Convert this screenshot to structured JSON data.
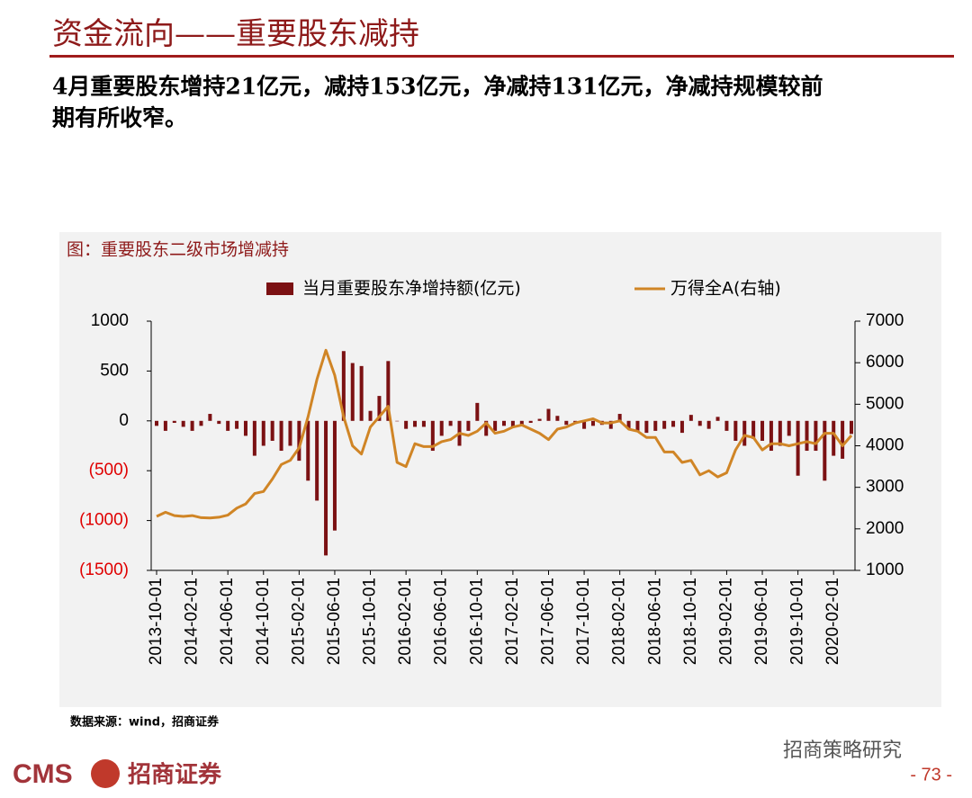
{
  "header": {
    "title": "资金流向——重要股东减持"
  },
  "summary": [
    "4月重要股东增持21亿元，减持153亿元，净减持131亿元，净减持规模较前",
    "期有所收窄。"
  ],
  "chart_data": {
    "type": "bar",
    "title": "图：重要股东二级市场增减持",
    "categories": [
      "2013-10-01",
      null,
      null,
      null,
      "2014-02-01",
      null,
      null,
      null,
      "2014-06-01",
      null,
      null,
      null,
      "2014-10-01",
      null,
      null,
      null,
      "2015-02-01",
      null,
      null,
      null,
      "2015-06-01",
      null,
      null,
      null,
      "2015-10-01",
      null,
      null,
      null,
      "2016-02-01",
      null,
      null,
      null,
      "2016-06-01",
      null,
      null,
      null,
      "2016-10-01",
      null,
      null,
      null,
      "2017-02-01",
      null,
      null,
      null,
      "2017-06-01",
      null,
      null,
      null,
      "2017-10-01",
      null,
      null,
      null,
      "2018-02-01",
      null,
      null,
      null,
      "2018-06-01",
      null,
      null,
      null,
      "2018-10-01",
      null,
      null,
      null,
      "2019-02-01",
      null,
      null,
      null,
      "2019-06-01",
      null,
      null,
      null,
      "2019-10-01",
      null,
      null,
      null,
      "2020-02-01",
      null,
      null
    ],
    "series": [
      {
        "name": "当月重要股东净增持额(亿元)",
        "type": "bar",
        "color": "#7b1113",
        "values": [
          -50,
          -100,
          -20,
          -60,
          -100,
          -50,
          70,
          -30,
          -100,
          -80,
          -150,
          -350,
          -250,
          -200,
          -300,
          -250,
          -400,
          -600,
          -800,
          -1350,
          -1100,
          700,
          580,
          550,
          100,
          250,
          600,
          0,
          -80,
          -60,
          -60,
          -300,
          -150,
          -50,
          -250,
          -100,
          180,
          -150,
          -100,
          -50,
          -60,
          -40,
          -20,
          20,
          120,
          50,
          -40,
          -30,
          -80,
          -50,
          -40,
          -80,
          70,
          -80,
          -100,
          -120,
          -100,
          -80,
          -60,
          -120,
          60,
          -50,
          -80,
          40,
          -100,
          -200,
          -250,
          -180,
          -200,
          -300,
          -250,
          -150,
          -550,
          -300,
          -300,
          -600,
          -350,
          -380,
          -131
        ]
      },
      {
        "name": "万得全A(右轴)",
        "type": "line",
        "axis": "y2",
        "color": "#d08526",
        "values": [
          2300,
          2400,
          2320,
          2300,
          2320,
          2270,
          2260,
          2280,
          2330,
          2500,
          2600,
          2850,
          2900,
          3200,
          3550,
          3650,
          3950,
          4700,
          5600,
          6300,
          5700,
          4700,
          4000,
          3800,
          4450,
          4700,
          4950,
          3600,
          3500,
          4050,
          3980,
          3980,
          4100,
          4150,
          4300,
          4250,
          4350,
          4550,
          4300,
          4350,
          4450,
          4500,
          4400,
          4300,
          4150,
          4400,
          4450,
          4550,
          4600,
          4650,
          4550,
          4550,
          4600,
          4400,
          4350,
          4200,
          4200,
          3850,
          3850,
          3600,
          3650,
          3300,
          3400,
          3250,
          3350,
          3900,
          4250,
          4200,
          3900,
          4050,
          4050,
          4000,
          4050,
          4100,
          4050,
          4300,
          4300,
          4000,
          4250
        ]
      }
    ],
    "ylim": [
      -1500,
      1000
    ],
    "yticks": [
      {
        "value": -1500,
        "label": "(1500)"
      },
      {
        "value": -1000,
        "label": "(1000)"
      },
      {
        "value": -500,
        "label": "(500)"
      },
      0,
      500,
      1000
    ],
    "y2lim": [
      1000,
      7000
    ],
    "y2ticks": [
      1000,
      2000,
      3000,
      4000,
      5000,
      6000,
      7000
    ],
    "legend": "top",
    "source": "数据来源：wind，招商证券"
  },
  "footer": {
    "brand": "CMS",
    "brand_cn": "招商证券",
    "watermark": "招商策略研究",
    "page": "- 73 -"
  }
}
